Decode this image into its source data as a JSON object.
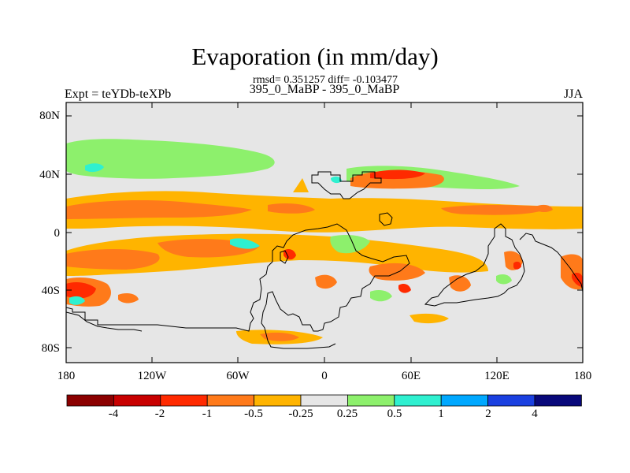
{
  "header": {
    "title": "Evaporation (in mm/day)",
    "stats": "rmsd= 0.351257 diff= -0.103477",
    "subtitle": "395_0_MaBP - 395_0_MaBP",
    "experiment": "Expt = teYDb-teXPb",
    "season": "JJA"
  },
  "axes": {
    "lat_labels": [
      "80N",
      "40N",
      "0",
      "40S",
      "80S"
    ],
    "lon_labels": [
      "180",
      "120W",
      "60W",
      "0",
      "60E",
      "120E",
      "180"
    ]
  },
  "colorbar": {
    "labels": [
      "-4",
      "-2",
      "-1",
      "-0.5",
      "-0.25",
      "0.25",
      "0.5",
      "1",
      "2",
      "4"
    ],
    "colors": [
      "#8b0000",
      "#c80000",
      "#ff2a00",
      "#ff7a1a",
      "#ffb400",
      "#e6e6e6",
      "#8df06c",
      "#2ff0d0",
      "#00a8ff",
      "#1a40e0",
      "#08087a"
    ]
  },
  "colors": {
    "background_field": "#e6e6e6",
    "coastline": "#000000"
  }
}
